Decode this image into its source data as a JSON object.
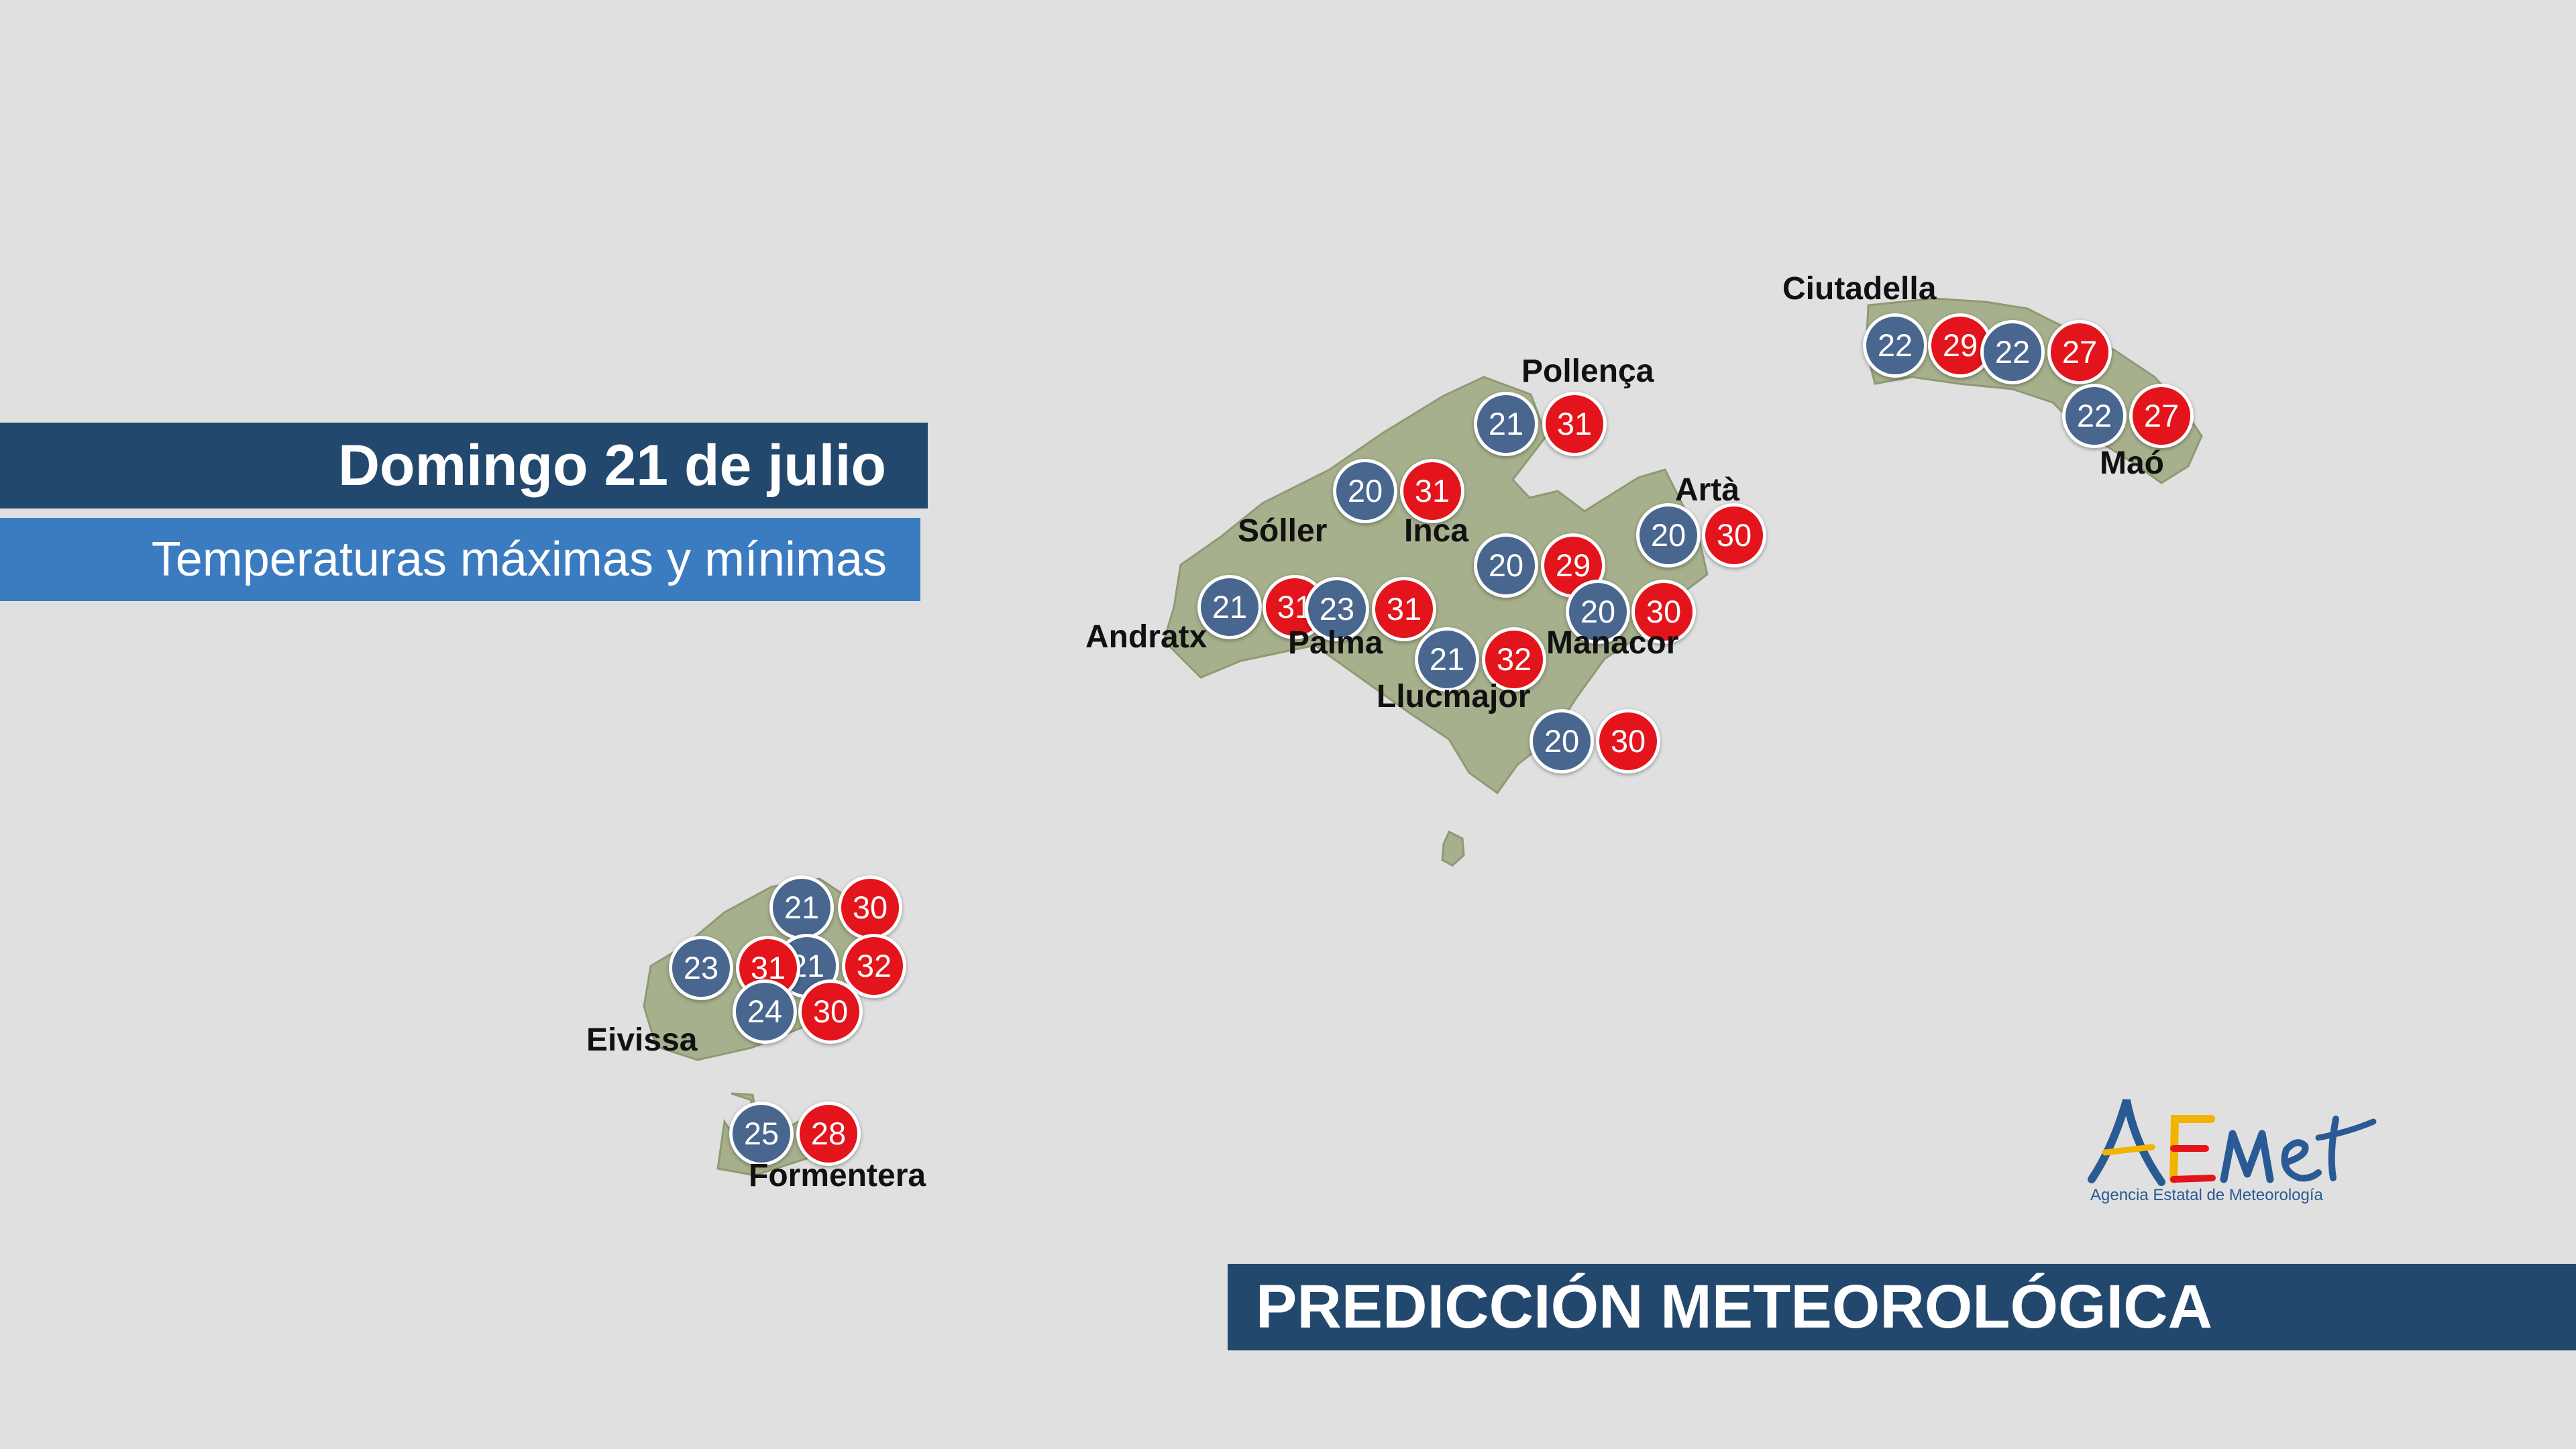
{
  "header": {
    "date": "Domingo  21 de julio",
    "subtitle": "Temperaturas máximas y mínimas"
  },
  "footer": {
    "title": "PREDICCIÓN METEOROLÓGICA"
  },
  "logo": {
    "text": "AEMet",
    "subtitle": "Agencia Estatal de Meteorología"
  },
  "colors": {
    "min_badge": "#48668e",
    "max_badge": "#e3141b",
    "banner_dark": "#23486e",
    "banner_light": "#3b7bc0"
  },
  "cities": [
    {
      "name": "Pollença"
    },
    {
      "name": "Sóller"
    },
    {
      "name": "Inca"
    },
    {
      "name": "Artà"
    },
    {
      "name": "Andratx"
    },
    {
      "name": "Palma"
    },
    {
      "name": "Manacor"
    },
    {
      "name": "Llucmajor"
    },
    {
      "name": "Ciutadella"
    },
    {
      "name": "Maó"
    },
    {
      "name": "Eivissa"
    },
    {
      "name": "Formentera"
    }
  ],
  "temperatures": [
    {
      "min": "21",
      "max": "31"
    },
    {
      "min": "20",
      "max": "31"
    },
    {
      "min": "20",
      "max": "30"
    },
    {
      "min": "20",
      "max": "29"
    },
    {
      "min": "21",
      "max": "31"
    },
    {
      "min": "23",
      "max": "31"
    },
    {
      "min": "20",
      "max": "30"
    },
    {
      "min": "21",
      "max": "32"
    },
    {
      "min": "20",
      "max": "30"
    },
    {
      "min": "22",
      "max": "29"
    },
    {
      "min": "22",
      "max": "27"
    },
    {
      "min": "22",
      "max": "27"
    },
    {
      "min": "21",
      "max": "30"
    },
    {
      "min": "21",
      "max": "32"
    },
    {
      "min": "23",
      "max": "31"
    },
    {
      "min": "24",
      "max": "30"
    },
    {
      "min": "25",
      "max": "28"
    }
  ]
}
